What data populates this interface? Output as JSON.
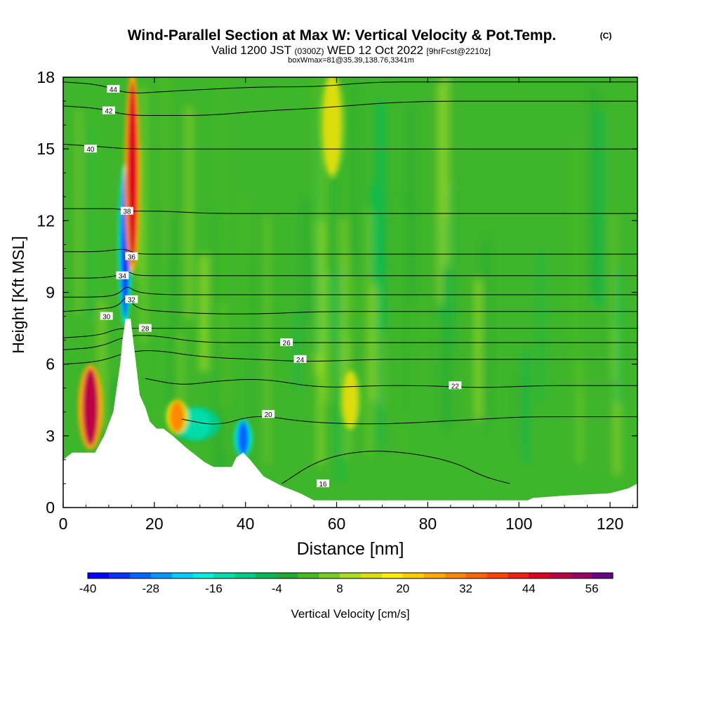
{
  "header": {
    "title": "Wind-Parallel Section at Max W: Vertical Velocity & Pot.Temp.",
    "title_suffix": "(C)",
    "valid_prefix": "Valid 1200 JST",
    "valid_zulu": "(0300Z)",
    "valid_date": "WED 12 Oct 2022",
    "valid_fcst": "[9hrFcst@2210z]",
    "box_info": "boxWmax=81@35.39,138.76,3341m"
  },
  "chart_data": {
    "type": "heatmap",
    "title": "Wind-Parallel Section at Max W: Vertical Velocity & Pot.Temp.",
    "xlabel": "Distance [nm]",
    "ylabel": "Height [Kft MSL]",
    "xlim": [
      0,
      126
    ],
    "ylim": [
      0,
      18
    ],
    "x_ticks": [
      0,
      20,
      40,
      60,
      80,
      100,
      120
    ],
    "y_ticks": [
      0,
      3,
      6,
      9,
      12,
      15,
      18
    ],
    "grid": false,
    "colorbar": {
      "label": "Vertical Velocity [cm/s]",
      "min": -40,
      "max": 60,
      "step": 4,
      "tick_values": [
        -40,
        -28,
        -16,
        -4,
        8,
        20,
        32,
        44,
        56
      ],
      "colors": [
        "#0000ff",
        "#0033ff",
        "#0066ff",
        "#0099ff",
        "#00ccff",
        "#00eedd",
        "#00ddaa",
        "#00cc88",
        "#00bb55",
        "#22aa33",
        "#44bb22",
        "#77cc22",
        "#aadd22",
        "#dddd11",
        "#ffee00",
        "#ffcc00",
        "#ffaa00",
        "#ff8800",
        "#ff6600",
        "#ff4400",
        "#ee2211",
        "#dd0022",
        "#bb0044",
        "#990066",
        "#660088"
      ]
    },
    "terrain_profile": [
      [
        0,
        2
      ],
      [
        2,
        2.3
      ],
      [
        7,
        2.3
      ],
      [
        9,
        3
      ],
      [
        11,
        4
      ],
      [
        12.5,
        6
      ],
      [
        13,
        7
      ],
      [
        13.7,
        7.9
      ],
      [
        14.8,
        7.9
      ],
      [
        15.5,
        6.8
      ],
      [
        16.8,
        4.7
      ],
      [
        18,
        4.2
      ],
      [
        19,
        3.6
      ],
      [
        20.5,
        3.3
      ],
      [
        22,
        3.3
      ],
      [
        24,
        3.0
      ],
      [
        27,
        2.5
      ],
      [
        29,
        2.2
      ],
      [
        31,
        1.9
      ],
      [
        33,
        1.7
      ],
      [
        37,
        1.7
      ],
      [
        38,
        2.1
      ],
      [
        39.5,
        2.3
      ],
      [
        41,
        2.0
      ],
      [
        44,
        1.3
      ],
      [
        48,
        0.9
      ],
      [
        52,
        0.6
      ],
      [
        55,
        0.3
      ],
      [
        60,
        0.3
      ],
      [
        65,
        0.3
      ],
      [
        75,
        0.3
      ],
      [
        90,
        0.3
      ],
      [
        102,
        0.3
      ],
      [
        103,
        0.4
      ],
      [
        110,
        0.5
      ],
      [
        120,
        0.6
      ],
      [
        124,
        0.8
      ],
      [
        126,
        1.0
      ]
    ],
    "velocity_features": [
      {
        "x": 6,
        "y": 4.2,
        "value": 48
      },
      {
        "x": 13.6,
        "y": 11,
        "value": -36
      },
      {
        "x": 15.2,
        "y": 14,
        "value": 44
      },
      {
        "x": 29,
        "y": 3.5,
        "value": -16
      },
      {
        "x": 39.5,
        "y": 2.9,
        "value": -32
      },
      {
        "x": 25,
        "y": 3.8,
        "value": 28
      },
      {
        "x": 59,
        "y": 16,
        "value": 12
      },
      {
        "x": 63,
        "y": 4.5,
        "value": 12
      }
    ],
    "isentropes": [
      {
        "theta": 16,
        "points": [
          [
            48,
            1.0
          ],
          [
            56,
            2.0
          ],
          [
            66,
            2.4
          ],
          [
            76,
            2.3
          ],
          [
            86,
            1.9
          ],
          [
            92,
            1.3
          ],
          [
            98,
            1.0
          ]
        ],
        "label_at": [
          57,
          1.0
        ]
      },
      {
        "theta": 20,
        "points": [
          [
            26,
            3.7
          ],
          [
            34,
            3.4
          ],
          [
            42,
            3.9
          ],
          [
            52,
            3.6
          ],
          [
            62,
            3.5
          ],
          [
            72,
            3.5
          ],
          [
            82,
            3.6
          ],
          [
            92,
            3.7
          ],
          [
            102,
            3.8
          ],
          [
            115,
            3.8
          ],
          [
            126,
            3.8
          ]
        ],
        "label_at": [
          45,
          3.9
        ]
      },
      {
        "theta": 22,
        "points": [
          [
            18,
            5.4
          ],
          [
            26,
            5.1
          ],
          [
            34,
            5.3
          ],
          [
            44,
            5.4
          ],
          [
            56,
            5.0
          ],
          [
            68,
            5.1
          ],
          [
            80,
            5.1
          ],
          [
            92,
            5.0
          ],
          [
            104,
            5.1
          ],
          [
            115,
            5.1
          ],
          [
            126,
            5.1
          ]
        ],
        "label_at": [
          86,
          5.1
        ]
      },
      {
        "theta": 24,
        "points": [
          [
            0,
            6.0
          ],
          [
            8,
            6.1
          ],
          [
            14,
            6.5
          ],
          [
            20,
            6.6
          ],
          [
            30,
            6.3
          ],
          [
            42,
            6.2
          ],
          [
            54,
            6.1
          ],
          [
            68,
            6.2
          ],
          [
            80,
            6.2
          ],
          [
            92,
            6.2
          ],
          [
            105,
            6.2
          ],
          [
            126,
            6.2
          ]
        ],
        "label_at": [
          52,
          6.2
        ]
      },
      {
        "theta": 26,
        "points": [
          [
            0,
            6.6
          ],
          [
            8,
            6.7
          ],
          [
            14,
            7.2
          ],
          [
            20,
            7.2
          ],
          [
            30,
            6.9
          ],
          [
            42,
            6.9
          ],
          [
            54,
            6.9
          ],
          [
            68,
            6.9
          ],
          [
            80,
            6.9
          ],
          [
            92,
            6.9
          ],
          [
            105,
            6.9
          ],
          [
            126,
            6.9
          ]
        ],
        "label_at": [
          49,
          6.9
        ]
      },
      {
        "theta": 28,
        "points": [
          [
            0,
            7.1
          ],
          [
            8,
            7.2
          ],
          [
            12,
            7.5
          ],
          [
            16,
            7.5
          ],
          [
            22,
            7.5
          ],
          [
            32,
            7.5
          ],
          [
            44,
            7.5
          ],
          [
            56,
            7.5
          ],
          [
            68,
            7.5
          ],
          [
            80,
            7.5
          ],
          [
            92,
            7.5
          ],
          [
            105,
            7.5
          ],
          [
            126,
            7.5
          ]
        ],
        "label_at": [
          18,
          7.5
        ]
      },
      {
        "theta": 30,
        "points": [
          [
            0,
            8.2
          ],
          [
            8,
            8.3
          ],
          [
            12,
            8.4
          ],
          [
            14,
            8.9
          ],
          [
            16,
            8.3
          ],
          [
            22,
            8.2
          ],
          [
            32,
            8.1
          ],
          [
            44,
            8.1
          ],
          [
            56,
            8.2
          ],
          [
            68,
            8.2
          ],
          [
            80,
            8.2
          ],
          [
            92,
            8.2
          ],
          [
            105,
            8.2
          ],
          [
            126,
            8.2
          ]
        ],
        "label_at": [
          9.5,
          8.0
        ]
      },
      {
        "theta": 32,
        "points": [
          [
            0,
            8.8
          ],
          [
            8,
            8.8
          ],
          [
            12,
            8.9
          ],
          [
            14,
            9.3
          ],
          [
            16,
            9.0
          ],
          [
            22,
            8.9
          ],
          [
            32,
            8.9
          ],
          [
            44,
            8.9
          ],
          [
            56,
            8.9
          ],
          [
            68,
            8.9
          ],
          [
            80,
            8.9
          ],
          [
            92,
            8.9
          ],
          [
            105,
            8.9
          ],
          [
            126,
            8.9
          ]
        ],
        "label_at": [
          15,
          8.7
        ]
      },
      {
        "theta": 34,
        "points": [
          [
            0,
            9.6
          ],
          [
            8,
            9.6
          ],
          [
            12,
            9.7
          ],
          [
            14,
            9.9
          ],
          [
            16,
            9.7
          ],
          [
            22,
            9.7
          ],
          [
            32,
            9.7
          ],
          [
            44,
            9.7
          ],
          [
            56,
            9.7
          ],
          [
            68,
            9.7
          ],
          [
            80,
            9.7
          ],
          [
            92,
            9.7
          ],
          [
            105,
            9.7
          ],
          [
            126,
            9.7
          ]
        ],
        "label_at": [
          13,
          9.7
        ]
      },
      {
        "theta": 36,
        "points": [
          [
            0,
            10.7
          ],
          [
            8,
            10.7
          ],
          [
            12,
            10.8
          ],
          [
            14,
            10.8
          ],
          [
            16,
            10.6
          ],
          [
            22,
            10.6
          ],
          [
            32,
            10.6
          ],
          [
            44,
            10.6
          ],
          [
            56,
            10.6
          ],
          [
            68,
            10.6
          ],
          [
            80,
            10.6
          ],
          [
            92,
            10.6
          ],
          [
            105,
            10.6
          ],
          [
            126,
            10.6
          ]
        ],
        "label_at": [
          15,
          10.5
        ]
      },
      {
        "theta": 38,
        "points": [
          [
            0,
            12.5
          ],
          [
            8,
            12.5
          ],
          [
            12,
            12.5
          ],
          [
            14,
            12.4
          ],
          [
            16,
            12.4
          ],
          [
            22,
            12.4
          ],
          [
            32,
            12.3
          ],
          [
            44,
            12.3
          ],
          [
            56,
            12.3
          ],
          [
            68,
            12.3
          ],
          [
            80,
            12.3
          ],
          [
            92,
            12.3
          ],
          [
            105,
            12.3
          ],
          [
            126,
            12.3
          ]
        ],
        "label_at": [
          14,
          12.4
        ]
      },
      {
        "theta": 40,
        "points": [
          [
            0,
            15.2
          ],
          [
            8,
            15.1
          ],
          [
            14,
            15.0
          ],
          [
            22,
            15.0
          ],
          [
            32,
            15.0
          ],
          [
            44,
            15.0
          ],
          [
            56,
            15.0
          ],
          [
            68,
            15.0
          ],
          [
            80,
            15.0
          ],
          [
            92,
            15.0
          ],
          [
            105,
            15.0
          ],
          [
            126,
            15.0
          ]
        ],
        "label_at": [
          6,
          15.0
        ]
      },
      {
        "theta": 42,
        "points": [
          [
            0,
            16.8
          ],
          [
            8,
            16.7
          ],
          [
            14,
            16.4
          ],
          [
            22,
            16.4
          ],
          [
            32,
            16.4
          ],
          [
            44,
            16.6
          ],
          [
            56,
            16.7
          ],
          [
            68,
            16.9
          ],
          [
            80,
            17.0
          ],
          [
            92,
            17.0
          ],
          [
            105,
            17.0
          ],
          [
            126,
            17.0
          ]
        ],
        "label_at": [
          10,
          16.6
        ]
      },
      {
        "theta": 44,
        "points": [
          [
            0,
            17.8
          ],
          [
            8,
            17.7
          ],
          [
            14,
            17.3
          ],
          [
            22,
            17.4
          ],
          [
            32,
            17.5
          ],
          [
            44,
            17.6
          ],
          [
            56,
            17.6
          ],
          [
            68,
            17.8
          ],
          [
            80,
            17.8
          ],
          [
            92,
            17.8
          ],
          [
            105,
            17.8
          ],
          [
            126,
            17.8
          ]
        ],
        "label_at": [
          11,
          17.5
        ]
      }
    ]
  }
}
